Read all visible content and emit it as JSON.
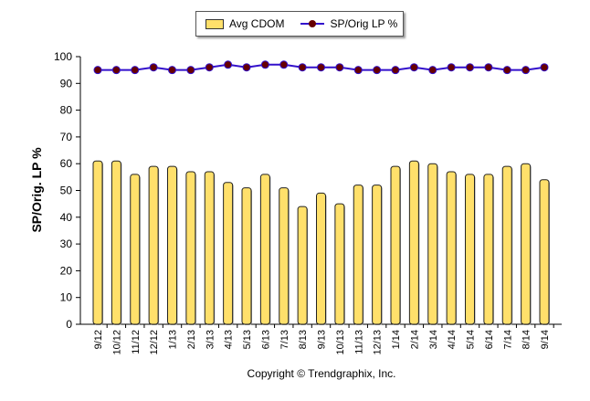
{
  "chart_data": {
    "type": "bar",
    "ylabel": "SP/Orig. LP %",
    "ylim": [
      0,
      100
    ],
    "yticks": [
      0,
      10,
      20,
      30,
      40,
      50,
      60,
      70,
      80,
      90,
      100
    ],
    "grid": false,
    "legend_position": "top",
    "categories": [
      "9/12",
      "10/12",
      "11/12",
      "12/12",
      "1/13",
      "2/13",
      "3/13",
      "4/13",
      "5/13",
      "6/13",
      "7/13",
      "8/13",
      "9/13",
      "10/13",
      "11/13",
      "12/13",
      "1/14",
      "2/14",
      "3/14",
      "4/14",
      "5/14",
      "6/14",
      "7/14",
      "8/14",
      "9/14"
    ],
    "series": [
      {
        "name": "Avg CDOM",
        "type": "bar",
        "color": "#ffe06b",
        "values": [
          61,
          61,
          56,
          59,
          59,
          57,
          57,
          53,
          51,
          56,
          51,
          44,
          49,
          45,
          52,
          52,
          59,
          61,
          60,
          57,
          56,
          56,
          59,
          60,
          54
        ]
      },
      {
        "name": "SP/Orig LP %",
        "type": "line",
        "color": "#3311cc",
        "marker_color": "#660000",
        "values": [
          95,
          95,
          95,
          96,
          95,
          95,
          96,
          97,
          96,
          97,
          97,
          96,
          96,
          96,
          95,
          95,
          95,
          96,
          95,
          96,
          96,
          96,
          95,
          95,
          96
        ]
      }
    ]
  },
  "footer": {
    "copyright": "Copyright © Trendgraphix, Inc."
  }
}
